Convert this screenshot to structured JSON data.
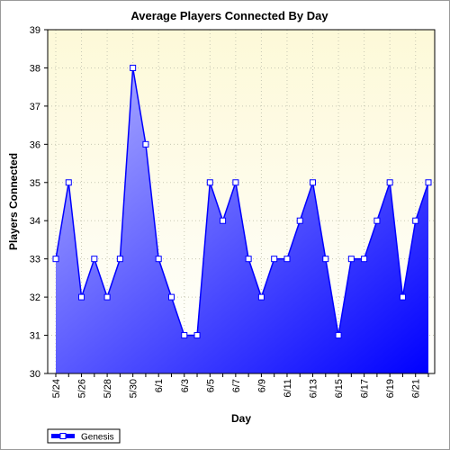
{
  "chart_data": {
    "type": "area",
    "title": "Average Players Connected By Day",
    "xlabel": "Day",
    "ylabel": "Players Connected",
    "ylim": [
      30,
      39
    ],
    "yticks": [
      "30",
      "31",
      "32",
      "33",
      "34",
      "35",
      "36",
      "37",
      "38",
      "39"
    ],
    "x": [
      "5/24",
      "5/25",
      "5/26",
      "5/27",
      "5/28",
      "5/29",
      "5/30",
      "5/31",
      "6/1",
      "6/2",
      "6/3",
      "6/4",
      "6/5",
      "6/6",
      "6/7",
      "6/8",
      "6/9",
      "6/10",
      "6/11",
      "6/12",
      "6/13",
      "6/14",
      "6/15",
      "6/16",
      "6/17",
      "6/18",
      "6/19",
      "6/20",
      "6/21",
      "6/22"
    ],
    "xtick_labels": [
      "5/24",
      "",
      "5/26",
      "",
      "5/28",
      "",
      "5/30",
      "",
      "6/1",
      "",
      "6/3",
      "",
      "6/5",
      "",
      "6/7",
      "",
      "6/9",
      "",
      "6/11",
      "",
      "6/13",
      "",
      "6/15",
      "",
      "6/17",
      "",
      "6/19",
      "",
      "6/21",
      ""
    ],
    "series": [
      {
        "name": "Genesis",
        "values": [
          33,
          35,
          32,
          33,
          32,
          33,
          38,
          36,
          33,
          32,
          31,
          31,
          35,
          34,
          35,
          33,
          32,
          33,
          33,
          34,
          35,
          33,
          31,
          33,
          33,
          34,
          35,
          32,
          34,
          35
        ]
      }
    ],
    "grid": true,
    "legend": "bottom-left",
    "colors": {
      "line": "#0000ff",
      "fill_light": "#b4b4ff",
      "fill_dark": "#0000ff",
      "plot_bg_top": "#fdf9d8",
      "plot_bg_bottom": "#ffffff",
      "marker_fill": "#ffffff"
    }
  }
}
